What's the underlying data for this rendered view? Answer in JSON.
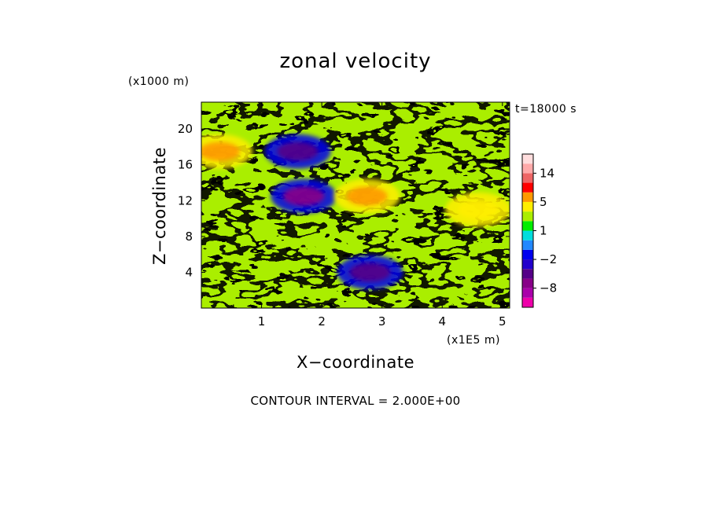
{
  "chart_data": {
    "type": "heatmap",
    "title": "zonal velocity",
    "xlabel": "X−coordinate",
    "ylabel": "Z−coordinate",
    "x_unit": "(x1E5 m)",
    "y_unit": "(x1000 m)",
    "time_label": "t=18000 s",
    "contour_interval": "CONTOUR INTERVAL = 2.000E+00",
    "xlim": [
      0,
      5.12
    ],
    "ylim": [
      0,
      23
    ],
    "x_ticks": [
      1,
      2,
      3,
      4,
      5
    ],
    "y_ticks": [
      4,
      8,
      12,
      16,
      20
    ],
    "colorbar": {
      "levels": [
        -12,
        -10,
        -8,
        -6,
        -4,
        -2,
        -1,
        0,
        1,
        2,
        3,
        5,
        8,
        11,
        14,
        17
      ],
      "colors": [
        "#ee00aa",
        "#aa00aa",
        "#880088",
        "#550088",
        "#2200cc",
        "#0000ee",
        "#2288ff",
        "#00dddd",
        "#00ee00",
        "#aaee00",
        "#ffee00",
        "#ff9900",
        "#ff0000",
        "#ee6666",
        "#ffaaaa",
        "#ffdddd"
      ],
      "labels": [
        {
          "value": -8,
          "text": "−8"
        },
        {
          "value": -2,
          "text": "−2"
        },
        {
          "value": 1,
          "text": "1"
        },
        {
          "value": 5,
          "text": "5"
        },
        {
          "value": 14,
          "text": "14"
        }
      ]
    },
    "features": [
      {
        "x": 1.7,
        "z": 12.5,
        "value": -8,
        "kind": "negative core"
      },
      {
        "x": 1.6,
        "z": 17.5,
        "value": -6,
        "kind": "negative core"
      },
      {
        "x": 2.75,
        "z": 12.5,
        "value": 5,
        "kind": "positive core"
      },
      {
        "x": 0.3,
        "z": 17.5,
        "value": 5,
        "kind": "positive core"
      },
      {
        "x": 2.8,
        "z": 4.0,
        "value": -6,
        "kind": "negative core"
      },
      {
        "x": 4.6,
        "z": 11.0,
        "value": 4,
        "kind": "positive core"
      }
    ]
  }
}
